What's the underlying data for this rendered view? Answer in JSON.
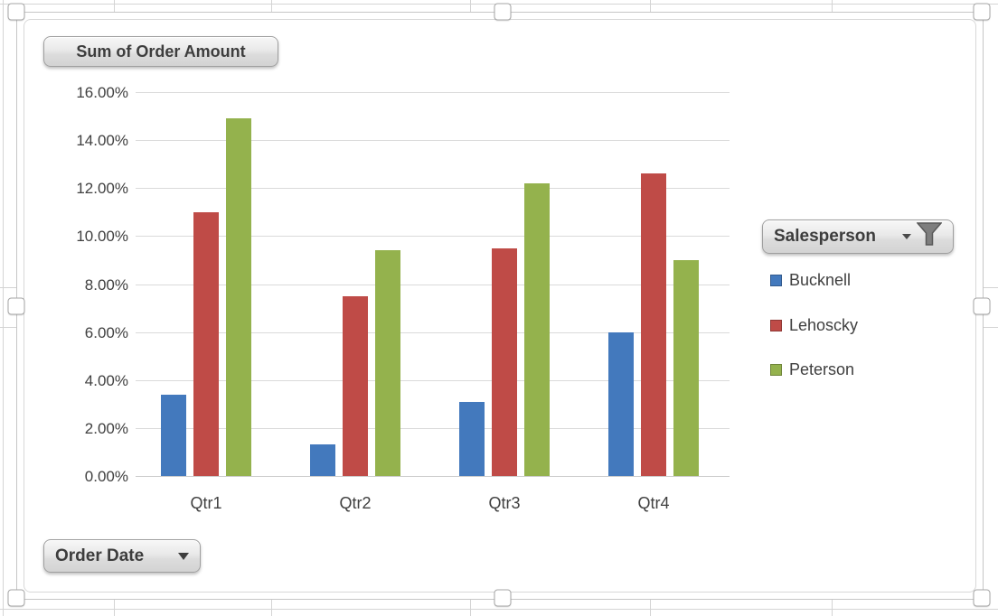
{
  "pivot_buttons": {
    "values_field": "Sum of Order Amount",
    "legend_field": "Salesperson",
    "axis_field": "Order Date"
  },
  "icons": {
    "filter_funnel": "funnel-filter-icon",
    "dropdown_arrow": "chevron-down-icon"
  },
  "chart_data": {
    "type": "bar",
    "title": "Sum of Order Amount",
    "categories": [
      "Qtr1",
      "Qtr2",
      "Qtr3",
      "Qtr4"
    ],
    "series": [
      {
        "name": "Bucknell",
        "color": "#4379bd",
        "values": [
          3.4,
          1.3,
          3.1,
          6.0
        ]
      },
      {
        "name": "Lehoscky",
        "color": "#bf4b47",
        "values": [
          11.0,
          7.5,
          9.5,
          12.6
        ]
      },
      {
        "name": "Peterson",
        "color": "#94b24d",
        "values": [
          14.9,
          9.4,
          12.2,
          9.0
        ]
      }
    ],
    "value_unit": "percent",
    "y_ticks": [
      "16.00%",
      "14.00%",
      "12.00%",
      "10.00%",
      "8.00%",
      "6.00%",
      "4.00%",
      "2.00%",
      "0.00%"
    ],
    "ylim": [
      0,
      16
    ],
    "grid": true,
    "legend_position": "right",
    "legend_filter_label": "Salesperson",
    "category_field_label": "Order Date"
  },
  "colors": {
    "bucknell": "#4379bd",
    "lehoscky": "#bf4b47",
    "peterson": "#94b24d",
    "gridline": "#dadada",
    "axis_text": "#404040"
  }
}
